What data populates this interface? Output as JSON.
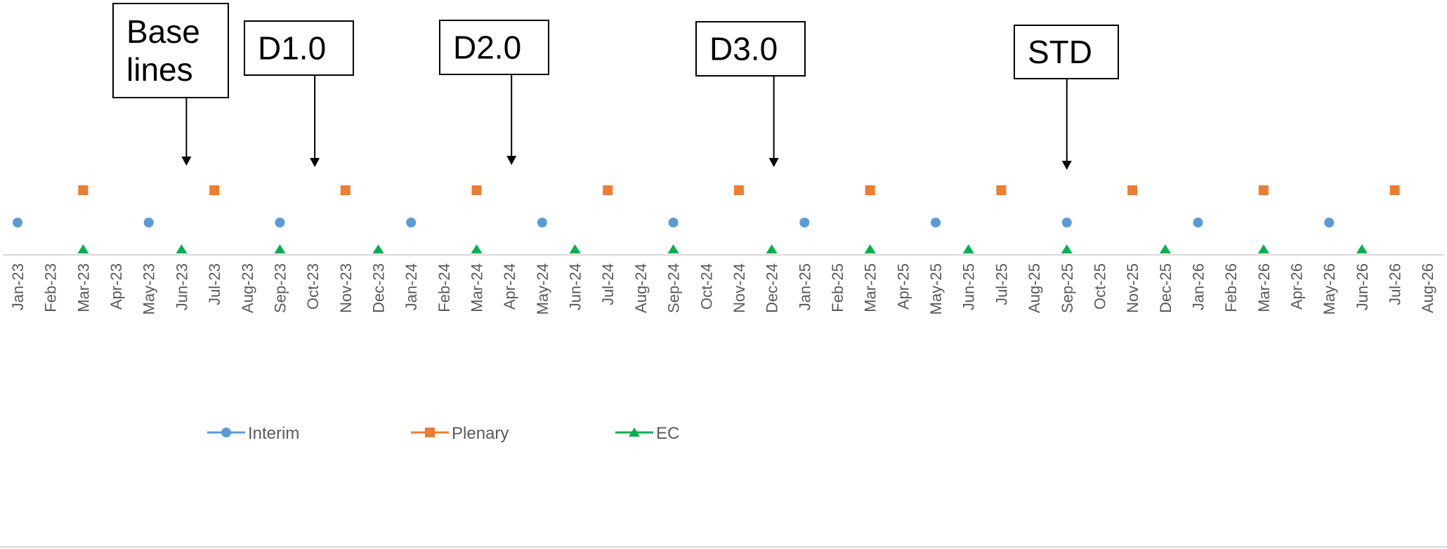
{
  "chart_data": {
    "type": "scatter",
    "title": "",
    "xlabel": "",
    "ylabel": "",
    "categories": [
      "Jan-23",
      "Feb-23",
      "Mar-23",
      "Apr-23",
      "May-23",
      "Jun-23",
      "Jul-23",
      "Aug-23",
      "Sep-23",
      "Oct-23",
      "Nov-23",
      "Dec-23",
      "Jan-24",
      "Feb-24",
      "Mar-24",
      "Apr-24",
      "May-24",
      "Jun-24",
      "Jul-24",
      "Aug-24",
      "Sep-24",
      "Oct-24",
      "Nov-24",
      "Dec-24",
      "Jan-25",
      "Feb-25",
      "Mar-25",
      "Apr-25",
      "May-25",
      "Jun-25",
      "Jul-25",
      "Aug-25",
      "Sep-25",
      "Oct-25",
      "Nov-25",
      "Dec-25",
      "Jan-26",
      "Feb-26",
      "Mar-26",
      "Apr-26",
      "May-26",
      "Jun-26",
      "Jul-26",
      "Aug-26"
    ],
    "series": [
      {
        "name": "Interim",
        "color": "#5B9BD5",
        "marker": "circle",
        "x": [
          "Jan-23",
          "May-23",
          "Sep-23",
          "Jan-24",
          "May-24",
          "Sep-24",
          "Jan-25",
          "May-25",
          "Sep-25",
          "Jan-26",
          "May-26"
        ]
      },
      {
        "name": "Plenary",
        "color": "#ED7D31",
        "marker": "square",
        "x": [
          "Mar-23",
          "Jul-23",
          "Nov-23",
          "Mar-24",
          "Jul-24",
          "Nov-24",
          "Mar-25",
          "Jul-25",
          "Nov-25",
          "Mar-26",
          "Jul-26"
        ]
      },
      {
        "name": "EC",
        "color": "#00B050",
        "marker": "triangle",
        "x": [
          "Mar-23",
          "Jun-23",
          "Sep-23",
          "Dec-23",
          "Mar-24",
          "Jun-24",
          "Sep-24",
          "Dec-24",
          "Mar-25",
          "Jun-25",
          "Sep-25",
          "Dec-25",
          "Mar-26",
          "Jun-26"
        ]
      }
    ],
    "annotations": [
      {
        "text": "Base lines",
        "lines": [
          "Base",
          "lines"
        ],
        "x": "Jun-23"
      },
      {
        "text": "D1.0",
        "lines": [
          "D1.0"
        ],
        "x": "Oct-23"
      },
      {
        "text": "D2.0",
        "lines": [
          "D2.0"
        ],
        "x": "Apr-24"
      },
      {
        "text": "D3.0",
        "lines": [
          "D3.0"
        ],
        "x": "Dec-24"
      },
      {
        "text": "STD",
        "lines": [
          "STD"
        ],
        "x": "Sep-25"
      }
    ],
    "legend": {
      "placement": "bottom"
    },
    "axis_color": "#D9D9D9",
    "grid": false
  }
}
